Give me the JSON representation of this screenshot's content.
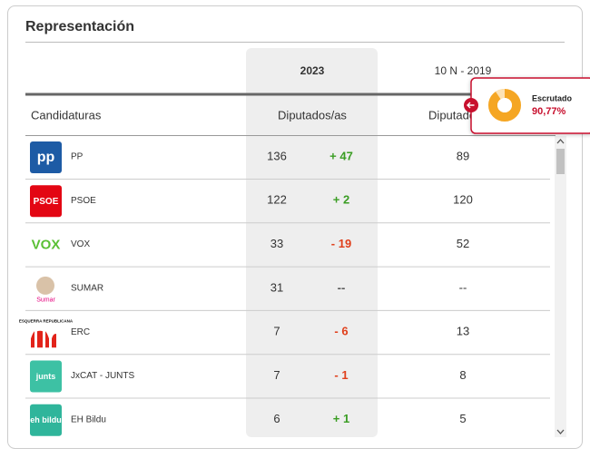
{
  "header": {
    "title": "Representación"
  },
  "table": {
    "group_headers": [
      "2023",
      "10 N - 2019"
    ],
    "columns": [
      "Candidaturas",
      "Diputados/as",
      "Diputados/as"
    ],
    "rows": [
      {
        "logo_text": "pp",
        "name": "PP",
        "seats": "136",
        "change": "+ 47",
        "seats_2019": "89"
      },
      {
        "logo_text": "PSOE",
        "name": "PSOE",
        "seats": "122",
        "change": "+ 2",
        "seats_2019": "120"
      },
      {
        "logo_text": "VOX",
        "name": "VOX",
        "seats": "33",
        "change": "- 19",
        "seats_2019": "52"
      },
      {
        "logo_text": "Sumar",
        "name": "SUMAR",
        "seats": "31",
        "change": "--",
        "seats_2019": "--"
      },
      {
        "logo_text": "ESQUERRA REPUBLICANA",
        "name": "ERC",
        "seats": "7",
        "change": "- 6",
        "seats_2019": "13"
      },
      {
        "logo_text": "junts",
        "name": "JxCAT - JUNTS",
        "seats": "7",
        "change": "- 1",
        "seats_2019": "8"
      },
      {
        "logo_text": "eh bildu",
        "name": "EH Bildu",
        "seats": "6",
        "change": "+ 1",
        "seats_2019": "5"
      }
    ]
  },
  "popup": {
    "label": "Escrutado",
    "value": "90,77%"
  }
}
